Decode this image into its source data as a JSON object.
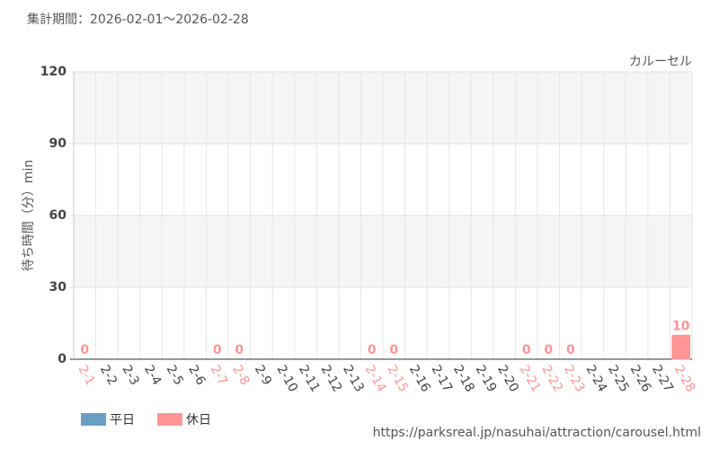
{
  "chart_data": {
    "type": "bar",
    "title": "集計期間：2026-02-01～2026-02-28",
    "subtitle": "カルーセル",
    "y_label": "待ち時間（分）min",
    "source": "https://parksreal.jp/nasuhai/attraction/carousel.html",
    "categories": [
      "2-1",
      "2-2",
      "2-3",
      "2-4",
      "2-5",
      "2-6",
      "2-7",
      "2-8",
      "2-9",
      "2-10",
      "2-11",
      "2-12",
      "2-13",
      "2-14",
      "2-15",
      "2-16",
      "2-17",
      "2-18",
      "2-19",
      "2-20",
      "2-21",
      "2-22",
      "2-23",
      "2-24",
      "2-25",
      "2-26",
      "2-27",
      "2-28"
    ],
    "series": [
      {
        "name": "平日",
        "color": "#6a9ec5",
        "values": [
          null,
          null,
          null,
          null,
          null,
          null,
          null,
          null,
          null,
          null,
          null,
          null,
          null,
          null,
          null,
          null,
          null,
          null,
          null,
          null,
          null,
          null,
          null,
          null,
          null,
          null,
          null,
          null
        ]
      },
      {
        "name": "休日",
        "color": "#ff9494",
        "values": [
          0,
          null,
          null,
          null,
          null,
          null,
          0,
          0,
          null,
          null,
          null,
          null,
          null,
          0,
          0,
          null,
          null,
          null,
          null,
          null,
          0,
          0,
          0,
          null,
          null,
          null,
          null,
          10
        ]
      }
    ],
    "ylim": [
      0,
      120
    ],
    "yticks": [
      0,
      30,
      60,
      90,
      120
    ],
    "grid": true
  }
}
